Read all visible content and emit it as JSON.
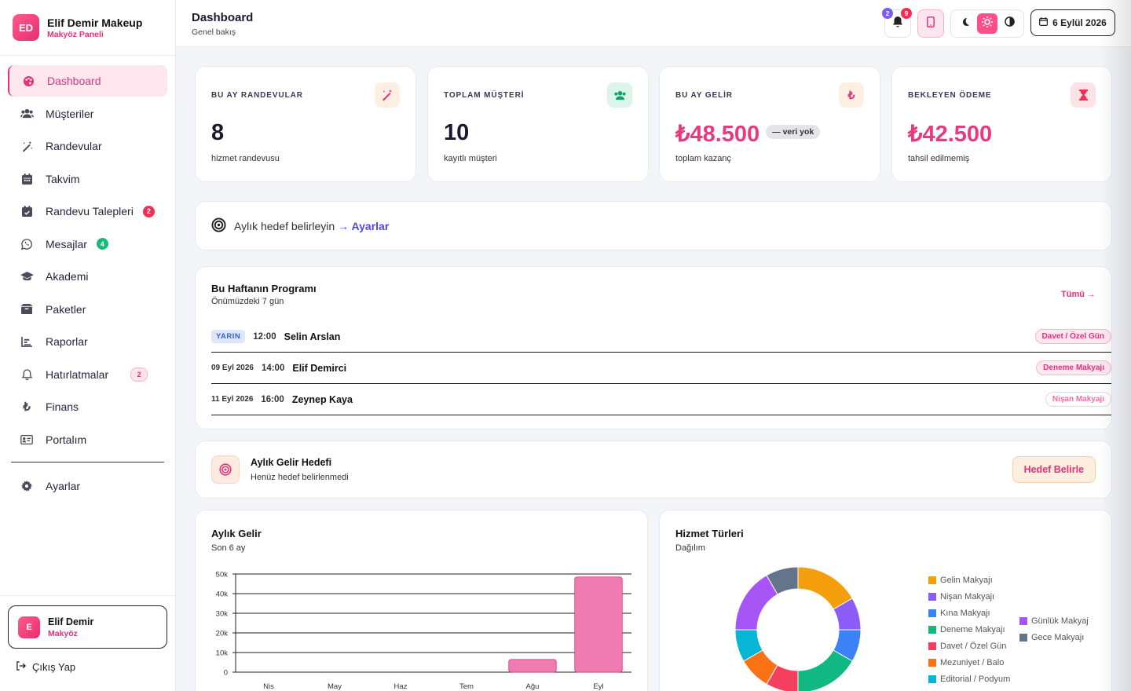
{
  "brand": {
    "logo": "ED",
    "name": "Elif Demir Makeup",
    "sub": "Makyöz Paneli"
  },
  "nav": [
    {
      "label": "Dashboard",
      "icon": "palette-icon",
      "active": true
    },
    {
      "label": "Müşteriler",
      "icon": "users-icon"
    },
    {
      "label": "Randevular",
      "icon": "magic-wand-icon"
    },
    {
      "label": "Takvim",
      "icon": "calendar-icon"
    },
    {
      "label": "Randevu Talepleri",
      "icon": "calendar-check-icon",
      "badge": "2"
    },
    {
      "label": "Mesajlar",
      "icon": "whatsapp-icon",
      "badge": "4"
    },
    {
      "label": "Akademi",
      "icon": "graduation-cap-icon"
    },
    {
      "label": "Paketler",
      "icon": "box-icon"
    },
    {
      "label": "Raporlar",
      "icon": "chart-icon"
    },
    {
      "label": "Hatırlatmalar",
      "icon": "bell-icon",
      "badge": "2"
    },
    {
      "label": "Finans",
      "icon": "lira-icon"
    },
    {
      "label": "Portalım",
      "icon": "id-card-icon"
    },
    {
      "label": "Ayarlar",
      "icon": "gear-icon"
    }
  ],
  "user": {
    "initial": "E",
    "name": "Elif Demir",
    "role": "Makyöz"
  },
  "logout": "Çıkış Yap",
  "header": {
    "title": "Dashboard",
    "subtitle": "Genel bakış",
    "notif_badge_a": "2",
    "notif_badge_b": "9",
    "date": "6 Eylül 2026"
  },
  "stats": [
    {
      "label": "BU AY RANDEVULAR",
      "value": "8",
      "desc": "hizmet randevusu",
      "icon": "magic-wand-icon",
      "bg": "#fdf0e2"
    },
    {
      "label": "TOPLAM MÜŞTERİ",
      "value": "10",
      "desc": "kayıtlı müşteri",
      "icon": "users-icon",
      "bg": "#dcf5ea"
    },
    {
      "label": "BU AY GELİR",
      "value": "₺48.500",
      "pill": "— veri yok",
      "desc": "toplam kazanç",
      "icon": "lira-icon",
      "bg": "#fdf0e2"
    },
    {
      "label": "BEKLEYEN ÖDEME",
      "value": "₺42.500",
      "desc": "tahsil edilmemiş",
      "icon": "hourglass-icon",
      "bg": "#fde3e6"
    }
  ],
  "goal_prompt": {
    "text": "Aylık hedef belirleyin",
    "link": "→ Ayarlar"
  },
  "week": {
    "title": "Bu Haftanın Programı",
    "subtitle": "Önümüzdeki 7 gün",
    "all_link": "Tümü →",
    "rows": [
      {
        "day": "YARIN",
        "time": "12:00",
        "name": "Selin Arslan",
        "service": "Davet / Özel Gün"
      },
      {
        "day": "09 Eyl 2026",
        "time": "14:00",
        "name": "Elif Demirci",
        "service": "Deneme Makyajı"
      },
      {
        "day": "11 Eyl 2026",
        "time": "16:00",
        "name": "Zeynep Kaya",
        "service": "Nişan Makyajı"
      }
    ]
  },
  "monthly_goal": {
    "title": "Aylık Gelir Hedefi",
    "subtitle": "Henüz hedef belirlenmedi",
    "button": "Hedef Belirle"
  },
  "colors": {
    "accent": "#e0337a",
    "bar": "#f07bb1"
  },
  "chart_data": [
    {
      "type": "bar",
      "title": "Aylık Gelir",
      "subtitle": "Son 6 ay",
      "categories": [
        "Nis",
        "May",
        "Haz",
        "Tem",
        "Ağu",
        "Eyl"
      ],
      "values": [
        0,
        0,
        0,
        0,
        6500,
        48500
      ],
      "ylim": [
        0,
        50000
      ],
      "yticks": [
        "0",
        "10k",
        "20k",
        "30k",
        "40k",
        "50k"
      ],
      "grid": true
    },
    {
      "type": "pie",
      "title": "Hizmet Türleri",
      "subtitle": "Dağılım",
      "labels": [
        "Gelin Makyajı",
        "Nişan Makyajı",
        "Kına Makyajı",
        "Deneme Makyajı",
        "Davet / Özel Gün",
        "Mezuniyet / Balo",
        "Editorial / Podyum",
        "Günlük Makyaj",
        "Gece Makyajı"
      ],
      "values": [
        2,
        1,
        1,
        2,
        1,
        1,
        1,
        2,
        1
      ],
      "colors": [
        "#f59e0b",
        "#8b5cf6",
        "#3b82f6",
        "#10b981",
        "#f43f5e",
        "#f97316",
        "#06b6d4",
        "#a855f7",
        "#64748b"
      ],
      "legend": "right"
    }
  ]
}
